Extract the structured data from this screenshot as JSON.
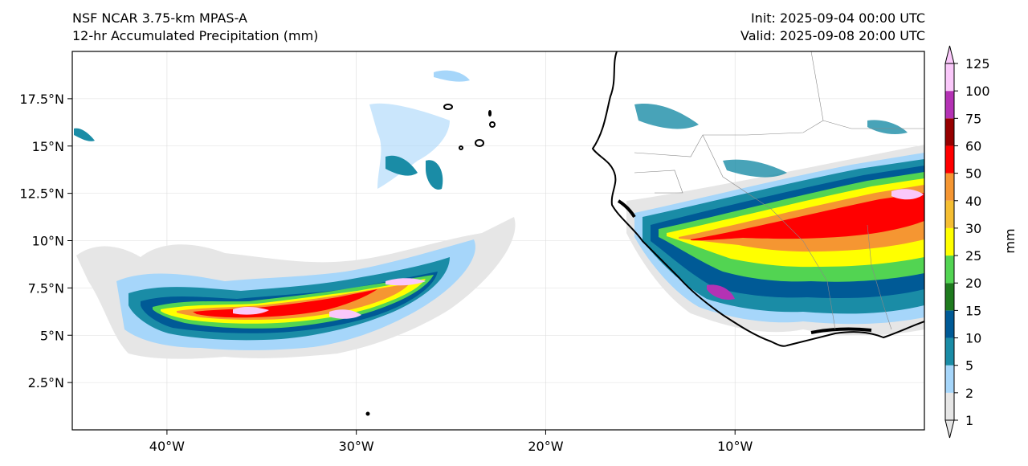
{
  "header": {
    "model": "NSF NCAR 3.75-km MPAS-A",
    "field": "12-hr Accumulated Precipitation (mm)",
    "init": "Init: 2025-09-04 00:00 UTC",
    "valid": "Valid: 2025-09-08 20:00 UTC"
  },
  "map": {
    "lon_range": [
      -45,
      0
    ],
    "lat_range": [
      0,
      20
    ],
    "lon_ticks": [
      {
        "value": -40,
        "label": "40°W"
      },
      {
        "value": -30,
        "label": "30°W"
      },
      {
        "value": -20,
        "label": "20°W"
      },
      {
        "value": -10,
        "label": "10°W"
      }
    ],
    "lat_ticks": [
      {
        "value": 2.5,
        "label": "2.5°N"
      },
      {
        "value": 5,
        "label": "5°N"
      },
      {
        "value": 7.5,
        "label": "7.5°N"
      },
      {
        "value": 10,
        "label": "10°N"
      },
      {
        "value": 12.5,
        "label": "12.5°N"
      },
      {
        "value": 15,
        "label": "15°N"
      },
      {
        "value": 17.5,
        "label": "17.5°N"
      }
    ],
    "gridlines": true
  },
  "colorbar": {
    "unit": "mm",
    "levels": [
      "1",
      "2",
      "5",
      "10",
      "15",
      "20",
      "25",
      "30",
      "40",
      "50",
      "60",
      "75",
      "100",
      "125"
    ],
    "colors": [
      "#e6e6e6",
      "#a6d6fa",
      "#1a8ca6",
      "#005a96",
      "#1e7a1e",
      "#52d452",
      "#ffff00",
      "#f5be32",
      "#f59632",
      "#ff0000",
      "#960000",
      "#b432b4",
      "#fac8fa"
    ],
    "extend": "both"
  }
}
